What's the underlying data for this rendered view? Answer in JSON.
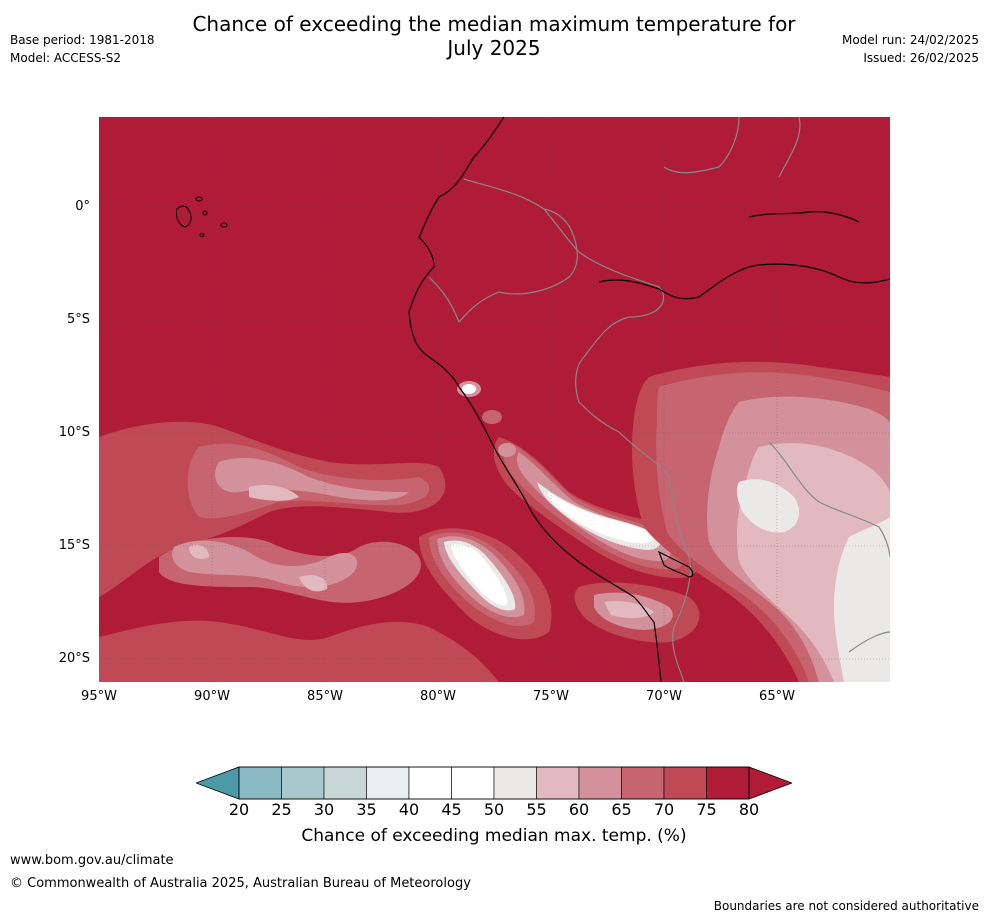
{
  "header": {
    "title_line1": "Chance of exceeding the median maximum temperature for",
    "title_line2": "July 2025",
    "base_period": "Base period: 1981-2018",
    "model": "Model: ACCESS-S2",
    "model_run": "Model run: 24/02/2025",
    "issued": "Issued: 26/02/2025"
  },
  "map": {
    "lat_labels": [
      "0°",
      "5°S",
      "10°S",
      "15°S",
      "20°S"
    ],
    "lon_labels": [
      "95°W",
      "90°W",
      "85°W",
      "80°W",
      "75°W",
      "70°W",
      "65°W"
    ],
    "region": {
      "lon_range": [
        -95,
        -60
      ],
      "lat_range": [
        -21,
        4
      ]
    },
    "dominant_category": "80+"
  },
  "colorbar": {
    "ticks": [
      "20",
      "25",
      "30",
      "35",
      "40",
      "45",
      "50",
      "55",
      "60",
      "65",
      "70",
      "75",
      "80"
    ],
    "label": "Chance of exceeding median max. temp. (%)",
    "colors": [
      "#66adb9",
      "#8bb9c4",
      "#a9c8cd",
      "#c9d6d8",
      "#e9eef0",
      "#ffffff",
      "#ffffff",
      "#ebe9e8",
      "#e2b9bf",
      "#d3929b",
      "#c6656f",
      "#bf4a55",
      "#b01c38"
    ],
    "under_color": "#4a9aa9",
    "over_color": "#b01c38"
  },
  "footer": {
    "url": "www.bom.gov.au/climate",
    "copyright": "© Commonwealth of Australia 2025, Australian Bureau of Meteorology",
    "disclaimer": "Boundaries are not considered authoritative"
  }
}
